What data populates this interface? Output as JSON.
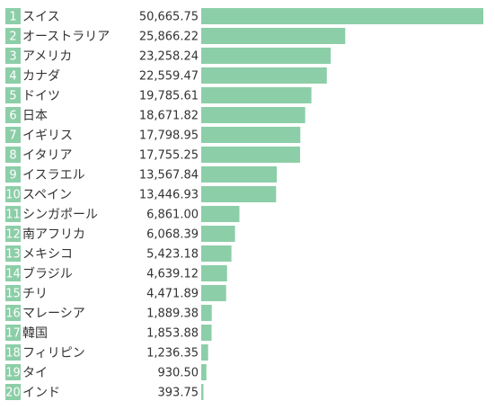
{
  "colors": {
    "bar": "#8ccea8",
    "badge": "#8ccea8",
    "badge_text": "#ffffff",
    "text": "#333333"
  },
  "chart_data": {
    "type": "bar",
    "orientation": "horizontal",
    "title": "",
    "xlabel": "",
    "ylabel": "",
    "xlim": [
      0,
      50665.75
    ],
    "grid": false,
    "legend": "none",
    "rows": [
      {
        "rank": "1",
        "name": "スイス",
        "value": 50665.75,
        "label": "50,665.75"
      },
      {
        "rank": "2",
        "name": "オーストラリア",
        "value": 25866.22,
        "label": "25,866.22"
      },
      {
        "rank": "3",
        "name": "アメリカ",
        "value": 23258.24,
        "label": "23,258.24"
      },
      {
        "rank": "4",
        "name": "カナダ",
        "value": 22559.47,
        "label": "22,559.47"
      },
      {
        "rank": "5",
        "name": "ドイツ",
        "value": 19785.61,
        "label": "19,785.61"
      },
      {
        "rank": "6",
        "name": "日本",
        "value": 18671.82,
        "label": "18,671.82"
      },
      {
        "rank": "7",
        "name": "イギリス",
        "value": 17798.95,
        "label": "17,798.95"
      },
      {
        "rank": "8",
        "name": "イタリア",
        "value": 17755.25,
        "label": "17,755.25"
      },
      {
        "rank": "9",
        "name": "イスラエル",
        "value": 13567.84,
        "label": "13,567.84"
      },
      {
        "rank": "10",
        "name": "スペイン",
        "value": 13446.93,
        "label": "13,446.93"
      },
      {
        "rank": "11",
        "name": "シンガポール",
        "value": 6861.0,
        "label": "6,861.00"
      },
      {
        "rank": "12",
        "name": "南アフリカ",
        "value": 6068.39,
        "label": "6,068.39"
      },
      {
        "rank": "13",
        "name": "メキシコ",
        "value": 5423.18,
        "label": "5,423.18"
      },
      {
        "rank": "14",
        "name": "ブラジル",
        "value": 4639.12,
        "label": "4,639.12"
      },
      {
        "rank": "15",
        "name": "チリ",
        "value": 4471.89,
        "label": "4,471.89"
      },
      {
        "rank": "16",
        "name": "マレーシア",
        "value": 1889.38,
        "label": "1,889.38"
      },
      {
        "rank": "17",
        "name": "韓国",
        "value": 1853.88,
        "label": "1,853.88"
      },
      {
        "rank": "18",
        "name": "フィリピン",
        "value": 1236.35,
        "label": "1,236.35"
      },
      {
        "rank": "19",
        "name": "タイ",
        "value": 930.5,
        "label": "930.50"
      },
      {
        "rank": "20",
        "name": "インド",
        "value": 393.75,
        "label": "393.75"
      }
    ]
  }
}
